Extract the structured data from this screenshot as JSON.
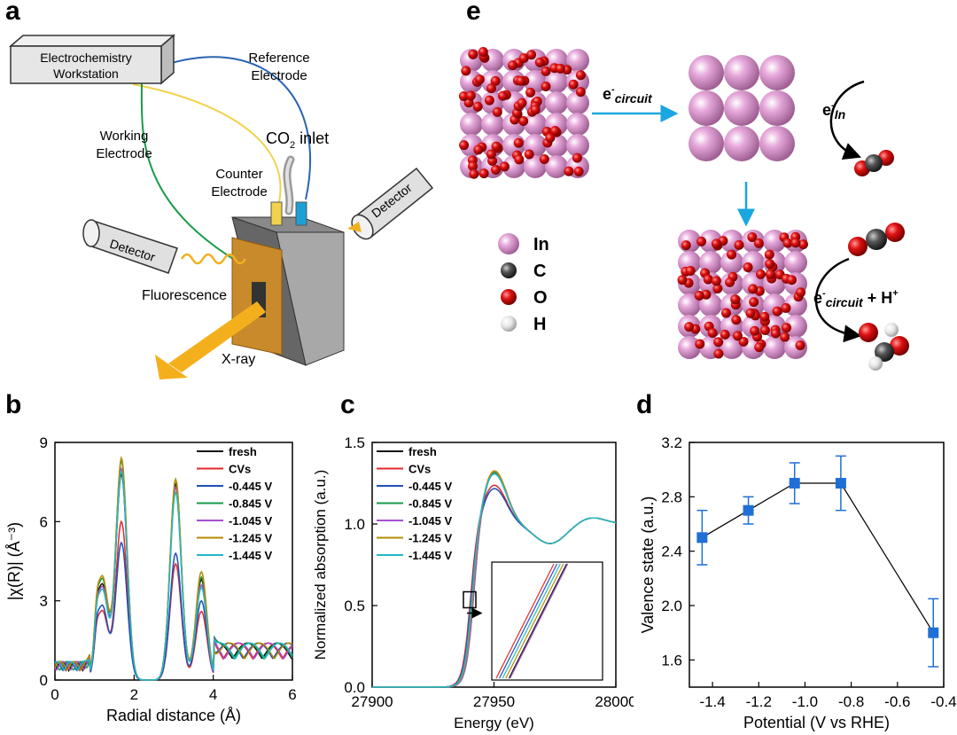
{
  "panels": {
    "a": {
      "label": "a",
      "workstation": [
        "Electrochemistry",
        "Workstation"
      ],
      "reference": [
        "Reference",
        "Electrode"
      ],
      "working": [
        "Working",
        "Electrode"
      ],
      "counter": [
        "Counter",
        "Electrode"
      ],
      "co2_inlet": {
        "pre": "CO",
        "sub": "2",
        "post": " inlet"
      },
      "detector_left": "Detector",
      "detector_right": "Detector",
      "fluorescence": "Fluorescence",
      "xray": "X-ray"
    },
    "e": {
      "label": "e",
      "arrow_top": {
        "e": "e",
        "sup": "-",
        "sub": "circuit"
      },
      "arrow_in": {
        "e": "e",
        "sup": "-",
        "sub": "In"
      },
      "arrow_bottom": {
        "e": "e",
        "sup": "-",
        "sub": "circuit",
        "tail": " + H",
        "tail_sup": "+"
      },
      "legend": [
        {
          "label": "In",
          "color": "#d889c9"
        },
        {
          "label": "C",
          "color": "#555555"
        },
        {
          "label": "O",
          "color": "#e01010"
        },
        {
          "label": "H",
          "color": "#e6e6e6"
        }
      ]
    },
    "b": {
      "label": "b"
    },
    "c": {
      "label": "c"
    },
    "d": {
      "label": "d"
    }
  },
  "chart_data": [
    {
      "panel": "b",
      "type": "line",
      "xlabel": "Radial distance (Å)",
      "ylabel": "|χ(R)| (Å⁻³)",
      "xlim": [
        0,
        6
      ],
      "ylim": [
        0,
        9
      ],
      "xticks": [
        "0",
        "2",
        "4",
        "6"
      ],
      "yticks": [
        "0",
        "3",
        "6",
        "9"
      ],
      "legend_position": "top-right",
      "series": [
        {
          "name": "fresh",
          "color": "#111111",
          "peaks": [
            [
              1.2,
              3.6
            ],
            [
              1.68,
              7.8
            ],
            [
              3.05,
              7.4
            ],
            [
              3.7,
              3.8
            ]
          ]
        },
        {
          "name": "CVs",
          "color": "#e3282d",
          "peaks": [
            [
              1.2,
              2.6
            ],
            [
              1.68,
              6.0
            ],
            [
              3.05,
              4.4
            ],
            [
              3.7,
              2.6
            ]
          ]
        },
        {
          "name": "-0.445 V",
          "color": "#1f4fb5",
          "peaks": [
            [
              1.2,
              2.8
            ],
            [
              1.68,
              5.2
            ],
            [
              3.05,
              4.8
            ],
            [
              3.7,
              3.0
            ]
          ]
        },
        {
          "name": "-0.845 V",
          "color": "#1a9a4a",
          "peaks": [
            [
              1.2,
              3.8
            ],
            [
              1.68,
              8.3
            ],
            [
              3.05,
              7.6
            ],
            [
              3.7,
              3.9
            ]
          ]
        },
        {
          "name": "-1.045 V",
          "color": "#a64fd0",
          "peaks": [
            [
              1.2,
              3.5
            ],
            [
              1.68,
              8.0
            ],
            [
              3.05,
              7.3
            ],
            [
              3.7,
              3.6
            ]
          ]
        },
        {
          "name": "-1.245 V",
          "color": "#b58b00",
          "peaks": [
            [
              1.2,
              3.9
            ],
            [
              1.68,
              8.4
            ],
            [
              3.05,
              7.6
            ],
            [
              3.7,
              4.1
            ]
          ]
        },
        {
          "name": "-1.445 V",
          "color": "#22b8c8",
          "peaks": [
            [
              1.2,
              3.4
            ],
            [
              1.68,
              7.9
            ],
            [
              3.05,
              7.1
            ],
            [
              3.7,
              3.5
            ]
          ]
        }
      ]
    },
    {
      "panel": "c",
      "type": "line",
      "xlabel": "Energy (eV)",
      "ylabel": "Normalized absorption (a.u.)",
      "xlim": [
        27900,
        28000
      ],
      "ylim": [
        0,
        1.5
      ],
      "xticks": [
        "27900",
        "27950",
        "28000"
      ],
      "yticks": [
        "0.0",
        "0.5",
        "1.0",
        "1.5"
      ],
      "legend_position": "top-left",
      "inset": "zoom of absorption edge near 27940 eV",
      "series": [
        {
          "name": "fresh",
          "color": "#111111",
          "edge": 27941.4,
          "peak": 1.33
        },
        {
          "name": "CVs",
          "color": "#e3282d",
          "edge": 27940.2,
          "peak": 1.24
        },
        {
          "name": "-0.445 V",
          "color": "#1f4fb5",
          "edge": 27940.5,
          "peak": 1.22
        },
        {
          "name": "-0.845 V",
          "color": "#1a9a4a",
          "edge": 27941.5,
          "peak": 1.32
        },
        {
          "name": "-1.045 V",
          "color": "#a64fd0",
          "edge": 27941.5,
          "peak": 1.33
        },
        {
          "name": "-1.245 V",
          "color": "#b58b00",
          "edge": 27941.1,
          "peak": 1.33
        },
        {
          "name": "-1.445 V",
          "color": "#22b8c8",
          "edge": 27940.8,
          "peak": 1.31
        }
      ]
    },
    {
      "panel": "d",
      "type": "scatter",
      "xlabel": "Potential (V vs RHE)",
      "ylabel": "Valence state (a.u.)",
      "xlim": [
        -1.5,
        -0.4
      ],
      "ylim": [
        1.4,
        3.2
      ],
      "xticks": [
        "-1.4",
        "-1.2",
        "-1.0",
        "-0.8",
        "-0.6",
        "-0.4"
      ],
      "yticks": [
        "1.6",
        "2.0",
        "2.4",
        "2.8",
        "3.2"
      ],
      "color": "#1f6fd6",
      "x": [
        -1.445,
        -1.245,
        -1.045,
        -0.845,
        -0.445
      ],
      "y": [
        2.5,
        2.7,
        2.9,
        2.9,
        1.8
      ],
      "err": [
        0.2,
        0.1,
        0.15,
        0.2,
        0.25
      ]
    }
  ]
}
